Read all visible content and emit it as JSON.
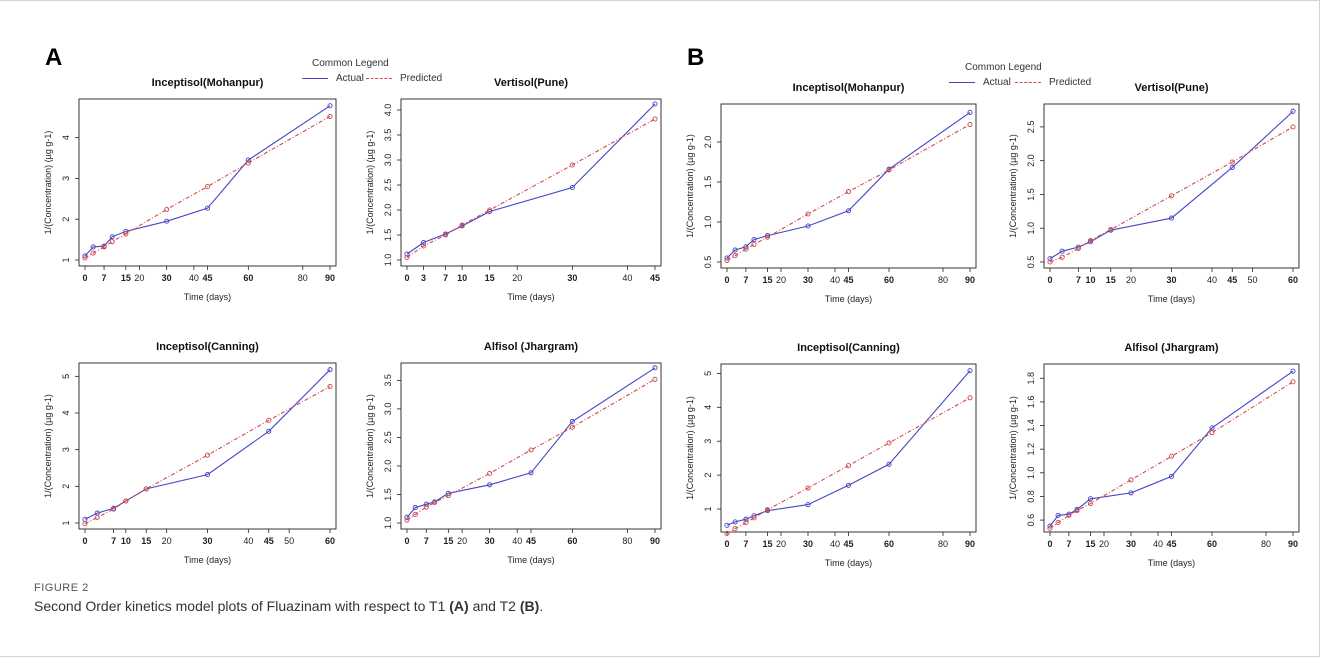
{
  "figure": {
    "label": "FIGURE 2",
    "caption_main": "Second Order kinetics model plots of Fluazinam with respect to T1 ",
    "caption_a": "(A)",
    "caption_mid": " and T2 ",
    "caption_b": "(B)",
    "caption_end": "."
  },
  "panels": {
    "a": {
      "letter": "A"
    },
    "b": {
      "letter": "B"
    }
  },
  "legend": {
    "title": "Common Legend",
    "actual": "Actual",
    "predicted": "Predicted"
  },
  "colors": {
    "actual": "#4545c8",
    "predicted": "#d04a4a",
    "axis": "#222222"
  },
  "chart_data": [
    {
      "type": "line",
      "panel": "A",
      "title": "Inceptisol(Mohanpur)",
      "xlabel": "Time (days)",
      "ylabel": "1/(Concentration) (µg g-1)",
      "xlim": [
        0,
        90
      ],
      "ylim": [
        1,
        4.8
      ],
      "xticks": [
        0,
        7,
        15,
        20,
        30,
        40,
        45,
        60,
        80,
        90
      ],
      "xticks_bold": [
        0,
        7,
        15,
        30,
        45,
        60,
        90
      ],
      "yticks": [
        1,
        2,
        3,
        4
      ],
      "series": [
        {
          "name": "Actual",
          "x": [
            0,
            3,
            7,
            10,
            15,
            30,
            45,
            60,
            90
          ],
          "y": [
            1.1,
            1.32,
            1.34,
            1.57,
            1.7,
            1.95,
            2.27,
            3.45,
            4.78
          ]
        },
        {
          "name": "Predicted",
          "x": [
            0,
            3,
            7,
            10,
            15,
            30,
            45,
            60,
            90
          ],
          "y": [
            1.05,
            1.17,
            1.32,
            1.45,
            1.64,
            2.24,
            2.8,
            3.38,
            4.52
          ]
        }
      ]
    },
    {
      "type": "line",
      "panel": "A",
      "title": "Vertisol(Pune)",
      "xlabel": "Time (days)",
      "ylabel": "1/(Concentration) (µg g-1)",
      "xlim": [
        0,
        45
      ],
      "ylim": [
        1.0,
        4.1
      ],
      "xticks": [
        0,
        3,
        7,
        10,
        15,
        20,
        30,
        40,
        45
      ],
      "xticks_bold": [
        0,
        3,
        7,
        10,
        15,
        30,
        45
      ],
      "yticks": [
        1.0,
        1.5,
        2.0,
        2.5,
        3.0,
        3.5,
        4.0
      ],
      "yticks_labels": [
        "1.0",
        "1.5",
        "2.0",
        "2.5",
        "3.0",
        "3.5",
        "4.0"
      ],
      "series": [
        {
          "name": "Actual",
          "x": [
            0,
            3,
            7,
            10,
            15,
            30,
            45
          ],
          "y": [
            1.12,
            1.35,
            1.52,
            1.68,
            1.97,
            2.45,
            4.12
          ]
        },
        {
          "name": "Predicted",
          "x": [
            0,
            3,
            7,
            10,
            15,
            30,
            45
          ],
          "y": [
            1.05,
            1.28,
            1.5,
            1.7,
            2.0,
            2.9,
            3.82
          ]
        }
      ]
    },
    {
      "type": "line",
      "panel": "A",
      "title": "Inceptisol(Canning)",
      "xlabel": "Time (days)",
      "ylabel": "1/(Concentration) (µg g-1)",
      "xlim": [
        0,
        60
      ],
      "ylim": [
        1,
        5.2
      ],
      "xticks": [
        0,
        7,
        10,
        15,
        20,
        30,
        40,
        45,
        50,
        60
      ],
      "xticks_bold": [
        0,
        7,
        10,
        15,
        30,
        45,
        60
      ],
      "yticks": [
        1,
        2,
        3,
        4,
        5
      ],
      "series": [
        {
          "name": "Actual",
          "x": [
            0,
            3,
            7,
            10,
            15,
            30,
            45,
            60
          ],
          "y": [
            1.1,
            1.27,
            1.4,
            1.6,
            1.93,
            2.32,
            3.5,
            5.18
          ]
        },
        {
          "name": "Predicted",
          "x": [
            0,
            3,
            7,
            10,
            15,
            30,
            45,
            60
          ],
          "y": [
            0.98,
            1.15,
            1.38,
            1.6,
            1.93,
            2.85,
            3.8,
            4.72
          ]
        }
      ]
    },
    {
      "type": "line",
      "panel": "A",
      "title": "Alfisol (Jhargram)",
      "xlabel": "Time (days)",
      "ylabel": "1/(Concentration) (µg g-1)",
      "xlim": [
        0,
        90
      ],
      "ylim": [
        1.0,
        3.7
      ],
      "xticks": [
        0,
        7,
        15,
        20,
        30,
        40,
        45,
        60,
        80,
        90
      ],
      "xticks_bold": [
        0,
        7,
        15,
        30,
        45,
        60,
        90
      ],
      "yticks": [
        1.0,
        1.5,
        2.0,
        2.5,
        3.0,
        3.5
      ],
      "yticks_labels": [
        "1.0",
        "1.5",
        "2.0",
        "2.5",
        "3.0",
        "3.5"
      ],
      "series": [
        {
          "name": "Actual",
          "x": [
            0,
            3,
            7,
            10,
            15,
            30,
            45,
            60,
            90
          ],
          "y": [
            1.1,
            1.27,
            1.33,
            1.37,
            1.52,
            1.67,
            1.88,
            2.78,
            3.72
          ]
        },
        {
          "name": "Predicted",
          "x": [
            0,
            3,
            7,
            10,
            15,
            30,
            45,
            60,
            90
          ],
          "y": [
            1.05,
            1.15,
            1.28,
            1.36,
            1.48,
            1.87,
            2.28,
            2.68,
            3.52
          ]
        }
      ]
    },
    {
      "type": "line",
      "panel": "B",
      "title": "Inceptisol(Mohanpur)",
      "xlabel": "Time (days)",
      "ylabel": "1/(Concentration) (µg g-1)",
      "xlim": [
        0,
        90
      ],
      "ylim": [
        0.5,
        2.4
      ],
      "xticks": [
        0,
        7,
        15,
        20,
        30,
        40,
        45,
        60,
        80,
        90
      ],
      "xticks_bold": [
        0,
        7,
        15,
        30,
        45,
        60,
        90
      ],
      "yticks": [
        0.5,
        1.0,
        1.5,
        2.0
      ],
      "yticks_labels": [
        "0.5",
        "1.0",
        "1.5",
        "2.0"
      ],
      "series": [
        {
          "name": "Actual",
          "x": [
            0,
            3,
            7,
            10,
            15,
            30,
            45,
            60,
            90
          ],
          "y": [
            0.55,
            0.65,
            0.69,
            0.78,
            0.83,
            0.95,
            1.14,
            1.66,
            2.37
          ]
        },
        {
          "name": "Predicted",
          "x": [
            0,
            3,
            7,
            10,
            15,
            30,
            45,
            60,
            90
          ],
          "y": [
            0.52,
            0.58,
            0.66,
            0.72,
            0.81,
            1.1,
            1.38,
            1.65,
            2.22
          ]
        }
      ]
    },
    {
      "type": "line",
      "panel": "B",
      "title": "Vertisol(Pune)",
      "xlabel": "Time (days)",
      "ylabel": "1/(Concentration) (µg g-1)",
      "xlim": [
        0,
        60
      ],
      "ylim": [
        0.5,
        2.75
      ],
      "xticks": [
        0,
        7,
        10,
        15,
        20,
        30,
        40,
        45,
        50,
        60
      ],
      "xticks_bold": [
        0,
        7,
        10,
        15,
        30,
        45,
        60
      ],
      "yticks": [
        0.5,
        1.0,
        1.5,
        2.0,
        2.5
      ],
      "yticks_labels": [
        "0.5",
        "1.0",
        "1.5",
        "2.0",
        "2.5"
      ],
      "series": [
        {
          "name": "Actual",
          "x": [
            0,
            3,
            7,
            10,
            15,
            30,
            45,
            60
          ],
          "y": [
            0.55,
            0.66,
            0.72,
            0.8,
            0.97,
            1.15,
            1.9,
            2.73
          ]
        },
        {
          "name": "Predicted",
          "x": [
            0,
            3,
            7,
            10,
            15,
            30,
            45,
            60
          ],
          "y": [
            0.5,
            0.57,
            0.7,
            0.82,
            0.98,
            1.48,
            1.98,
            2.5
          ]
        }
      ]
    },
    {
      "type": "line",
      "panel": "B",
      "title": "Inceptisol(Canning)",
      "xlabel": "Time (days)",
      "ylabel": "1/(Concentration) (µg g-1)",
      "xlim": [
        0,
        90
      ],
      "ylim": [
        0.5,
        5.1
      ],
      "xticks": [
        0,
        7,
        15,
        20,
        30,
        40,
        45,
        60,
        80,
        90
      ],
      "xticks_bold": [
        0,
        7,
        15,
        30,
        45,
        60,
        90
      ],
      "yticks": [
        1,
        2,
        3,
        4,
        5
      ],
      "series": [
        {
          "name": "Actual",
          "x": [
            0,
            3,
            7,
            10,
            15,
            30,
            45,
            60,
            90
          ],
          "y": [
            0.52,
            0.62,
            0.7,
            0.8,
            0.95,
            1.13,
            1.7,
            2.32,
            5.08
          ]
        },
        {
          "name": "Predicted",
          "x": [
            0,
            3,
            7,
            10,
            15,
            30,
            45,
            60,
            90
          ],
          "y": [
            0.28,
            0.42,
            0.6,
            0.74,
            0.98,
            1.62,
            2.28,
            2.95,
            4.28
          ]
        }
      ]
    },
    {
      "type": "line",
      "panel": "B",
      "title": "Alfisol (Jhargram)",
      "xlabel": "Time (days)",
      "ylabel": "1/(Concentration) (µg g-1)",
      "xlim": [
        0,
        90
      ],
      "ylim": [
        0.55,
        1.87
      ],
      "xticks": [
        0,
        7,
        15,
        20,
        30,
        40,
        45,
        60,
        80,
        90
      ],
      "xticks_bold": [
        0,
        7,
        15,
        30,
        45,
        60,
        90
      ],
      "yticks": [
        0.6,
        0.8,
        1.0,
        1.2,
        1.4,
        1.6,
        1.8
      ],
      "yticks_labels": [
        "0.6",
        "0.8",
        "1.0",
        "1.2",
        "1.4",
        "1.6",
        "1.8"
      ],
      "series": [
        {
          "name": "Actual",
          "x": [
            0,
            3,
            7,
            10,
            15,
            30,
            45,
            60,
            90
          ],
          "y": [
            0.55,
            0.64,
            0.65,
            0.69,
            0.78,
            0.83,
            0.97,
            1.38,
            1.86
          ]
        },
        {
          "name": "Predicted",
          "x": [
            0,
            3,
            7,
            10,
            15,
            30,
            45,
            60,
            90
          ],
          "y": [
            0.53,
            0.58,
            0.64,
            0.68,
            0.74,
            0.94,
            1.14,
            1.34,
            1.77
          ]
        }
      ]
    }
  ]
}
